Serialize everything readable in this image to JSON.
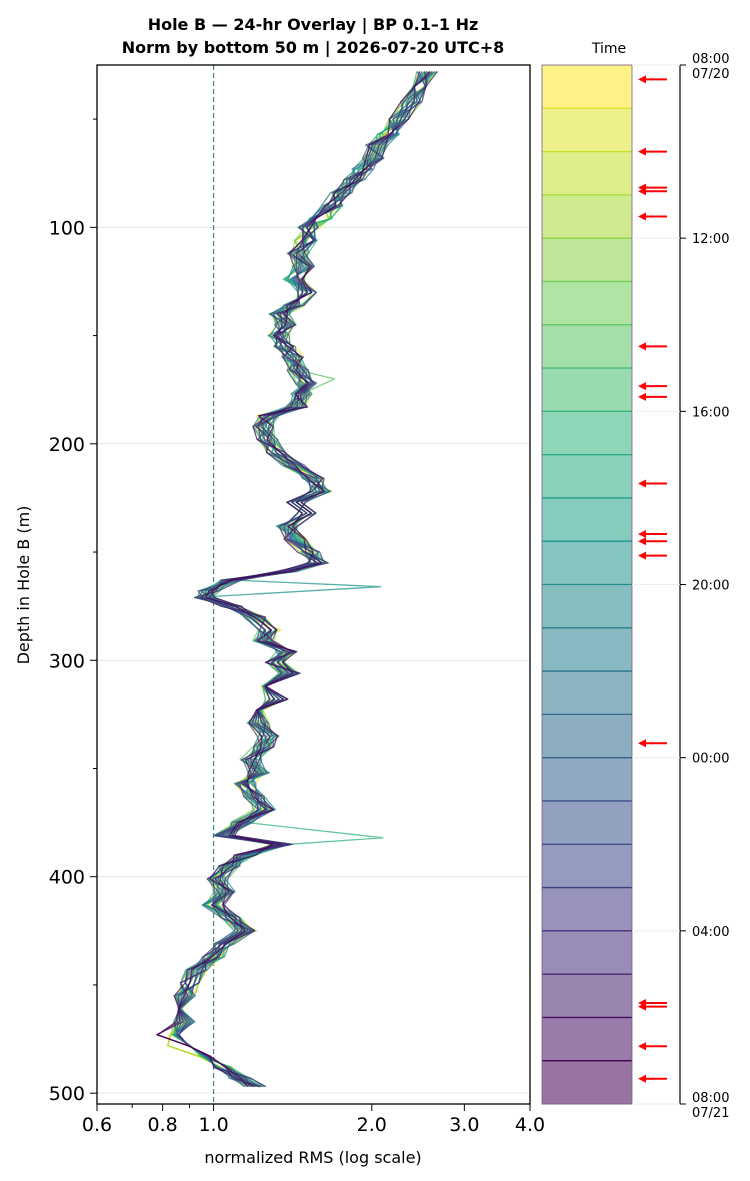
{
  "chart_data": {
    "type": "line",
    "title_line1": "Hole B — 24-hr Overlay  |  BP 0.1–1 Hz",
    "title_line2": "Norm by bottom 50 m  |  2026-07-20 UTC+8",
    "xlabel": "normalized RMS  (log scale)",
    "ylabel": "Depth in Hole B (m)",
    "x_scale": "log",
    "xlim": [
      0.6,
      4.0
    ],
    "ylim": [
      505,
      25
    ],
    "x_ticks": [
      0.6,
      0.8,
      1.0,
      2.0,
      3.0,
      4.0
    ],
    "x_tick_labels": [
      "0.6",
      "0.8",
      "1.0",
      "2.0",
      "3.0",
      "4.0"
    ],
    "y_ticks": [
      100,
      200,
      300,
      400,
      500
    ],
    "y_tick_labels": [
      "100",
      "200",
      "300",
      "400",
      "500"
    ],
    "reference_line_x": 1.0,
    "grid": "horizontal",
    "profile": [
      [
        28,
        2.55
      ],
      [
        35,
        2.5
      ],
      [
        42,
        2.38
      ],
      [
        50,
        2.25
      ],
      [
        57,
        2.15
      ],
      [
        62,
        2.05
      ],
      [
        68,
        2.02
      ],
      [
        73,
        1.92
      ],
      [
        78,
        1.85
      ],
      [
        84,
        1.75
      ],
      [
        90,
        1.68
      ],
      [
        96,
        1.6
      ],
      [
        100,
        1.52
      ],
      [
        106,
        1.5
      ],
      [
        112,
        1.45
      ],
      [
        118,
        1.48
      ],
      [
        124,
        1.42
      ],
      [
        130,
        1.5
      ],
      [
        136,
        1.42
      ],
      [
        140,
        1.33
      ],
      [
        145,
        1.37
      ],
      [
        150,
        1.33
      ],
      [
        155,
        1.37
      ],
      [
        160,
        1.42
      ],
      [
        166,
        1.45
      ],
      [
        172,
        1.5
      ],
      [
        177,
        1.47
      ],
      [
        183,
        1.44
      ],
      [
        187,
        1.27
      ],
      [
        192,
        1.24
      ],
      [
        198,
        1.27
      ],
      [
        204,
        1.32
      ],
      [
        210,
        1.42
      ],
      [
        216,
        1.55
      ],
      [
        222,
        1.6
      ],
      [
        227,
        1.45
      ],
      [
        232,
        1.5
      ],
      [
        238,
        1.38
      ],
      [
        244,
        1.43
      ],
      [
        250,
        1.52
      ],
      [
        255,
        1.58
      ],
      [
        259,
        1.38
      ],
      [
        263,
        1.08
      ],
      [
        268,
        0.98
      ],
      [
        271,
        0.96
      ],
      [
        275,
        1.08
      ],
      [
        280,
        1.2
      ],
      [
        286,
        1.28
      ],
      [
        291,
        1.25
      ],
      [
        296,
        1.38
      ],
      [
        301,
        1.3
      ],
      [
        306,
        1.4
      ],
      [
        312,
        1.28
      ],
      [
        318,
        1.32
      ],
      [
        323,
        1.25
      ],
      [
        329,
        1.22
      ],
      [
        335,
        1.27
      ],
      [
        340,
        1.25
      ],
      [
        346,
        1.18
      ],
      [
        352,
        1.22
      ],
      [
        357,
        1.15
      ],
      [
        363,
        1.2
      ],
      [
        369,
        1.25
      ],
      [
        375,
        1.13
      ],
      [
        381,
        1.05
      ],
      [
        385,
        1.35
      ],
      [
        390,
        1.15
      ],
      [
        395,
        1.07
      ],
      [
        401,
        1.02
      ],
      [
        407,
        1.05
      ],
      [
        413,
        1.0
      ],
      [
        419,
        1.08
      ],
      [
        425,
        1.15
      ],
      [
        431,
        1.05
      ],
      [
        437,
        1.0
      ],
      [
        443,
        0.93
      ],
      [
        449,
        0.9
      ],
      [
        455,
        0.88
      ],
      [
        461,
        0.85
      ],
      [
        467,
        0.88
      ],
      [
        473,
        0.82
      ],
      [
        478,
        0.86
      ],
      [
        483,
        0.95
      ],
      [
        488,
        1.05
      ],
      [
        493,
        1.12
      ],
      [
        497,
        1.2
      ]
    ],
    "spikes": [
      {
        "depth": 170,
        "value": 1.7,
        "time": "14:15"
      },
      {
        "depth": 266,
        "value": 2.08,
        "time": "18:30"
      },
      {
        "depth": 382,
        "value": 2.1,
        "time": "15:45"
      }
    ],
    "series_count": 24,
    "colorbar": {
      "title": "Time",
      "colormap": "viridis",
      "start": "2026-07-20T08:00",
      "end": "2026-07-21T08:00",
      "tick_hours": [
        0,
        4,
        8,
        12,
        16,
        20,
        24
      ],
      "tick_labels": [
        "08:00\n07/20",
        "12:00",
        "16:00",
        "20:00",
        "00:00",
        "04:00",
        "08:00\n07/21"
      ],
      "arrow_times": [
        "08:20",
        "10:00",
        "10:50",
        "10:55",
        "11:30",
        "14:30",
        "15:25",
        "15:40",
        "17:40",
        "18:50",
        "19:00",
        "19:20",
        "23:40",
        "05:40",
        "05:45",
        "06:40",
        "07:25"
      ],
      "arrow_color": "#ff0000"
    }
  }
}
